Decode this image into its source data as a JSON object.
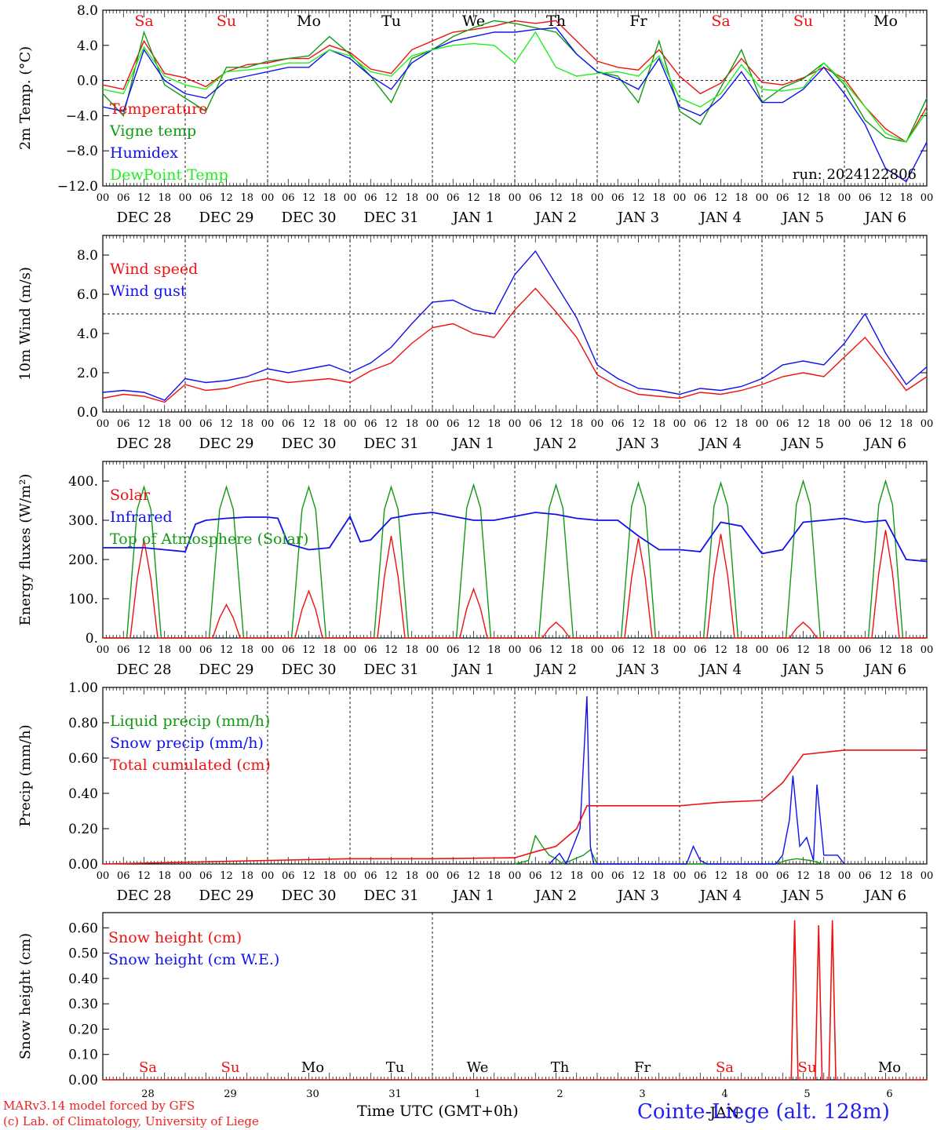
{
  "x_labels": {
    "hours": [
      "00",
      "06",
      "12",
      "18"
    ],
    "last_hour": "00",
    "dates": [
      "DEC 28",
      "DEC 29",
      "DEC 30",
      "DEC 31",
      "JAN  1",
      "JAN  2",
      "JAN  3",
      "JAN  4",
      "JAN  5",
      "JAN  6"
    ],
    "weekdays": [
      "Sa",
      "Su",
      "Mo",
      "Tu",
      "We",
      "Th",
      "Fr",
      "Sa",
      "Su",
      "Mo"
    ],
    "day_numbers": [
      "28",
      "29",
      "30",
      "31",
      "1",
      "2",
      "3",
      "4",
      "5",
      "6"
    ]
  },
  "colors": {
    "red": "#ee1111",
    "darkgreen": "#119911",
    "blue": "#1111ee",
    "lightgreen": "#22ee22",
    "black": "#000000"
  },
  "chart_data": [
    {
      "id": "temperature",
      "type": "line",
      "ylabel": "2m Temp. (°C)",
      "ylim": [
        -12,
        8
      ],
      "yticks": [
        "8.0",
        "4.0",
        "0.0",
        "−4.0",
        "−8.0",
        "−12.0"
      ],
      "annotation": "run: 2024122806",
      "x_hours": [
        0,
        6,
        12,
        18,
        24,
        30,
        36,
        42,
        48,
        54,
        60,
        66,
        72,
        78,
        84,
        90,
        96,
        102,
        108,
        114,
        120,
        126,
        132,
        138,
        144,
        150,
        156,
        162,
        168,
        174,
        180,
        186,
        192,
        198,
        204,
        210,
        216,
        222,
        228,
        234,
        240
      ],
      "series": [
        {
          "name": "Temperature",
          "color": "red",
          "values": [
            -0.5,
            -1.0,
            4.5,
            0.8,
            0.3,
            -0.7,
            1.0,
            1.8,
            2.0,
            2.5,
            2.5,
            4.0,
            3.2,
            1.3,
            0.8,
            3.5,
            4.5,
            5.5,
            5.8,
            6.2,
            6.8,
            6.5,
            6.8,
            4.5,
            2.2,
            1.5,
            1.2,
            3.5,
            0.5,
            -1.5,
            -0.3,
            2.5,
            -0.2,
            -0.5,
            0.3,
            1.5,
            0.2,
            -3.0,
            -5.5,
            -7.0,
            -3.0
          ]
        },
        {
          "name": "Vigne temp",
          "color": "darkgreen",
          "values": [
            -1.5,
            -4.0,
            5.5,
            -0.5,
            -2.0,
            -3.5,
            1.5,
            1.5,
            2.2,
            2.5,
            2.8,
            5.0,
            3.0,
            0.5,
            -2.5,
            2.5,
            3.5,
            5.0,
            6.0,
            6.8,
            6.5,
            6.0,
            5.5,
            3.0,
            1.0,
            0.5,
            -2.5,
            4.5,
            -3.5,
            -5.0,
            -0.8,
            3.5,
            -2.5,
            -0.8,
            0.2,
            2.0,
            -0.5,
            -4.5,
            -6.5,
            -7.0,
            -2.0
          ]
        },
        {
          "name": "Humidex",
          "color": "blue",
          "values": [
            -3.0,
            -3.5,
            3.5,
            0.0,
            -1.5,
            -2.0,
            0.0,
            0.5,
            1.0,
            1.5,
            1.5,
            3.5,
            2.5,
            0.5,
            -1.0,
            2.0,
            3.5,
            4.5,
            5.0,
            5.5,
            5.5,
            5.8,
            6.0,
            3.0,
            1.0,
            0.2,
            -1.0,
            2.5,
            -3.0,
            -4.0,
            -2.0,
            1.0,
            -2.5,
            -2.5,
            -1.0,
            1.5,
            -1.5,
            -5.0,
            -10.0,
            -11.5,
            -7.0
          ]
        },
        {
          "name": "DewPoint Temp",
          "color": "lightgreen",
          "values": [
            -1.0,
            -1.5,
            3.8,
            0.5,
            -0.5,
            -1.0,
            1.0,
            1.2,
            1.5,
            2.0,
            2.0,
            3.5,
            2.8,
            1.0,
            0.5,
            2.8,
            3.5,
            4.0,
            4.2,
            4.0,
            2.0,
            5.5,
            1.5,
            0.5,
            0.8,
            1.0,
            0.5,
            2.8,
            -2.0,
            -3.0,
            -1.5,
            1.8,
            -1.0,
            -1.2,
            -0.8,
            2.0,
            -0.2,
            -3.0,
            -6.0,
            -7.0,
            -3.5
          ]
        }
      ],
      "ref_line": 0
    },
    {
      "id": "wind",
      "type": "line",
      "ylabel": "10m Wind (m/s)",
      "ylim": [
        0,
        9
      ],
      "yticks": [
        "8.0",
        "6.0",
        "4.0",
        "2.0",
        "0.0"
      ],
      "x_hours": [
        0,
        6,
        12,
        18,
        24,
        30,
        36,
        42,
        48,
        54,
        60,
        66,
        72,
        78,
        84,
        90,
        96,
        102,
        108,
        114,
        120,
        126,
        132,
        138,
        144,
        150,
        156,
        162,
        168,
        174,
        180,
        186,
        192,
        198,
        204,
        210,
        216,
        222,
        228,
        234,
        240
      ],
      "series": [
        {
          "name": "Wind speed",
          "color": "red",
          "values": [
            0.7,
            0.9,
            0.8,
            0.5,
            1.4,
            1.1,
            1.2,
            1.5,
            1.7,
            1.5,
            1.6,
            1.7,
            1.5,
            2.1,
            2.5,
            3.5,
            4.3,
            4.5,
            4.0,
            3.8,
            5.2,
            6.3,
            5.1,
            3.8,
            1.9,
            1.3,
            0.9,
            0.8,
            0.7,
            1.0,
            0.9,
            1.1,
            1.4,
            1.8,
            2.0,
            1.8,
            2.8,
            3.8,
            2.5,
            1.1,
            1.8
          ]
        },
        {
          "name": "Wind gust",
          "color": "blue",
          "values": [
            1.0,
            1.1,
            1.0,
            0.6,
            1.7,
            1.5,
            1.6,
            1.8,
            2.2,
            2.0,
            2.2,
            2.4,
            2.0,
            2.5,
            3.3,
            4.5,
            5.6,
            5.7,
            5.2,
            5.0,
            7.0,
            8.2,
            6.5,
            4.8,
            2.4,
            1.7,
            1.2,
            1.1,
            0.9,
            1.2,
            1.1,
            1.3,
            1.7,
            2.4,
            2.6,
            2.4,
            3.5,
            5.0,
            3.0,
            1.4,
            2.3
          ]
        }
      ],
      "ref_line": 5
    },
    {
      "id": "energy",
      "type": "line",
      "ylabel": "Energy fluxes (W/m²)",
      "ylim": [
        0,
        450
      ],
      "yticks": [
        "400.",
        "300.",
        "200.",
        "100.",
        "0."
      ],
      "solar_peaks": [
        250,
        85,
        120,
        260,
        125,
        40,
        255,
        265,
        40,
        275
      ],
      "toa_peaks": [
        385,
        385,
        385,
        385,
        390,
        390,
        395,
        395,
        400,
        400
      ],
      "infrared_x_hours": [
        0,
        12,
        24,
        27,
        30,
        36,
        42,
        48,
        51,
        54,
        60,
        66,
        72,
        75,
        78,
        84,
        90,
        96,
        102,
        108,
        114,
        120,
        126,
        132,
        138,
        144,
        150,
        156,
        162,
        168,
        174,
        180,
        186,
        192,
        198,
        204,
        210,
        216,
        222,
        228,
        234,
        240
      ],
      "infrared_values": [
        230,
        230,
        220,
        290,
        300,
        305,
        308,
        308,
        305,
        240,
        225,
        230,
        310,
        245,
        250,
        305,
        315,
        320,
        310,
        300,
        300,
        310,
        320,
        315,
        305,
        300,
        300,
        260,
        225,
        225,
        220,
        295,
        285,
        215,
        225,
        295,
        300,
        305,
        295,
        300,
        200,
        195
      ],
      "series": [
        {
          "name": "Solar",
          "color": "red"
        },
        {
          "name": "Infrared",
          "color": "blue"
        },
        {
          "name": "Top of Atmosphere (Solar)",
          "color": "darkgreen"
        }
      ]
    },
    {
      "id": "precip",
      "type": "line",
      "ylabel": "Precip (mm/h)",
      "ylim": [
        0,
        1.0
      ],
      "yticks": [
        "1.00",
        "0.80",
        "0.60",
        "0.40",
        "0.20",
        "0.00"
      ],
      "x_hours": [
        0,
        24,
        48,
        72,
        96,
        120,
        126,
        132,
        138,
        141,
        144,
        168,
        180,
        192,
        198,
        204,
        216,
        240
      ],
      "series": [
        {
          "name": "Liquid precip (mm/h)",
          "color": "darkgreen"
        },
        {
          "name": "Snow precip (mm/h)",
          "color": "blue"
        },
        {
          "name": "Total cumulated (cm)",
          "color": "red",
          "values": [
            0.0,
            0.01,
            0.02,
            0.03,
            0.03,
            0.035,
            0.07,
            0.1,
            0.2,
            0.33,
            0.33,
            0.33,
            0.35,
            0.36,
            0.46,
            0.62,
            0.645,
            0.645
          ]
        }
      ],
      "liquid_points": [
        [
          120,
          0
        ],
        [
          124,
          0.02
        ],
        [
          126,
          0.16
        ],
        [
          128,
          0.1
        ],
        [
          130,
          0.05
        ],
        [
          132,
          0.03
        ],
        [
          134,
          0.0
        ],
        [
          140,
          0.05
        ],
        [
          142,
          0.08
        ],
        [
          144,
          0.0
        ],
        [
          196,
          0.0
        ],
        [
          199,
          0.02
        ],
        [
          202,
          0.03
        ],
        [
          206,
          0.02
        ],
        [
          210,
          0.0
        ]
      ],
      "snow_points": [
        [
          130,
          0
        ],
        [
          133,
          0.06
        ],
        [
          135,
          0.0
        ],
        [
          139,
          0.2
        ],
        [
          141,
          0.95
        ],
        [
          142,
          0.1
        ],
        [
          143,
          0.0
        ],
        [
          147,
          0.0
        ],
        [
          170,
          0.0
        ],
        [
          172,
          0.1
        ],
        [
          174,
          0.02
        ],
        [
          176,
          0.0
        ],
        [
          196,
          0.0
        ],
        [
          198,
          0.05
        ],
        [
          200,
          0.25
        ],
        [
          201,
          0.5
        ],
        [
          203,
          0.1
        ],
        [
          205,
          0.15
        ],
        [
          207,
          0.02
        ],
        [
          208,
          0.45
        ],
        [
          210,
          0.05
        ],
        [
          214,
          0.05
        ],
        [
          216,
          0.0
        ]
      ]
    },
    {
      "id": "snowheight",
      "type": "line",
      "ylabel": "Snow height (cm)",
      "ylim": [
        0,
        0.66
      ],
      "yticks": [
        "0.60",
        "0.50",
        "0.40",
        "0.30",
        "0.20",
        "0.10",
        "0.00"
      ],
      "series": [
        {
          "name": "Snow height (cm)",
          "color": "red"
        },
        {
          "name": "Snow height (cm W.E.)",
          "color": "blue"
        }
      ],
      "spikes": [
        [
          201.5,
          0.63
        ],
        [
          208.5,
          0.61
        ],
        [
          212.5,
          0.63
        ]
      ]
    }
  ],
  "footer": {
    "model_line": "MARv3.14 model forced by GFS",
    "lab_line": "(c) Lab. of Climatology, University of Liege",
    "time_axis": "Time UTC (GMT+0h)",
    "jan_label": "JAN",
    "location": "Cointe-Liege (alt. 128m)"
  }
}
